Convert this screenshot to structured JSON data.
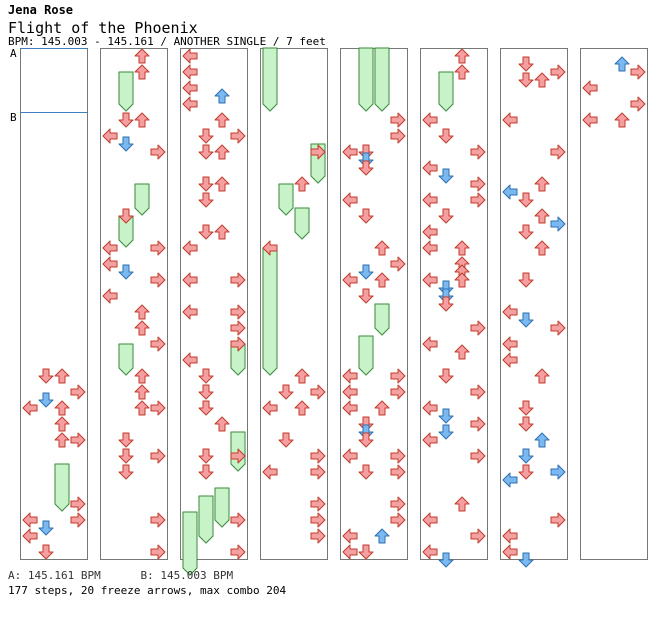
{
  "header": {
    "artist": "Jena Rose",
    "title": "Flight of the Phoenix",
    "info": "BPM: 145.003 - 145.161 / ANOTHER SINGLE / 7 feet"
  },
  "footer": {
    "bpm_legend": "A: 145.161 BPM      B: 145.003 BPM",
    "stats": "177 steps, 20 freeze arrows, max combo 204"
  },
  "bpm_markers": [
    {
      "label": "A",
      "column": 0,
      "beat": 0
    },
    {
      "label": "B",
      "column": 0,
      "beat": 4
    }
  ],
  "colors": {
    "normal_note": "#f5a0a0",
    "offbeat_note": "#7ab8ef",
    "freeze": "#c8f2c8"
  },
  "chart_data": {
    "type": "step-chart",
    "columns": 8,
    "measures_per_column": 8,
    "beats_per_measure": 4,
    "lanes": [
      "left",
      "down",
      "up",
      "right"
    ],
    "notes": [
      {
        "c": 0,
        "b": 20.0,
        "l": 1,
        "k": "n"
      },
      {
        "c": 0,
        "b": 20.0,
        "l": 2,
        "k": "n"
      },
      {
        "c": 0,
        "b": 21.0,
        "l": 3,
        "k": "n"
      },
      {
        "c": 0,
        "b": 21.5,
        "l": 1,
        "k": "o"
      },
      {
        "c": 0,
        "b": 22.0,
        "l": 0,
        "k": "n"
      },
      {
        "c": 0,
        "b": 22.0,
        "l": 2,
        "k": "n"
      },
      {
        "c": 0,
        "b": 23.0,
        "l": 2,
        "k": "n"
      },
      {
        "c": 0,
        "b": 24.0,
        "l": 2,
        "k": "n"
      },
      {
        "c": 0,
        "b": 24.0,
        "l": 3,
        "k": "n"
      },
      {
        "c": 0,
        "b": 28.0,
        "l": 3,
        "k": "n"
      },
      {
        "c": 0,
        "b": 29.0,
        "l": 0,
        "k": "n"
      },
      {
        "c": 0,
        "b": 29.0,
        "l": 3,
        "k": "n"
      },
      {
        "c": 0,
        "b": 29.5,
        "l": 1,
        "k": "o"
      },
      {
        "c": 0,
        "b": 30.0,
        "l": 0,
        "k": "n"
      },
      {
        "c": 0,
        "b": 31.0,
        "l": 1,
        "k": "n"
      },
      {
        "c": 1,
        "b": 0.0,
        "l": 2,
        "k": "n"
      },
      {
        "c": 1,
        "b": 1.0,
        "l": 2,
        "k": "n"
      },
      {
        "c": 1,
        "b": 4.0,
        "l": 1,
        "k": "n"
      },
      {
        "c": 1,
        "b": 4.0,
        "l": 2,
        "k": "n"
      },
      {
        "c": 1,
        "b": 5.0,
        "l": 0,
        "k": "n"
      },
      {
        "c": 1,
        "b": 5.5,
        "l": 1,
        "k": "o"
      },
      {
        "c": 1,
        "b": 6.0,
        "l": 3,
        "k": "n"
      },
      {
        "c": 1,
        "b": 10.0,
        "l": 1,
        "k": "n"
      },
      {
        "c": 1,
        "b": 12.0,
        "l": 3,
        "k": "n"
      },
      {
        "c": 1,
        "b": 12.0,
        "l": 0,
        "k": "n"
      },
      {
        "c": 1,
        "b": 13.0,
        "l": 0,
        "k": "n"
      },
      {
        "c": 1,
        "b": 13.5,
        "l": 1,
        "k": "o"
      },
      {
        "c": 1,
        "b": 14.0,
        "l": 3,
        "k": "n"
      },
      {
        "c": 1,
        "b": 15.0,
        "l": 0,
        "k": "n"
      },
      {
        "c": 1,
        "b": 16.0,
        "l": 2,
        "k": "n"
      },
      {
        "c": 1,
        "b": 17.0,
        "l": 2,
        "k": "n"
      },
      {
        "c": 1,
        "b": 18.0,
        "l": 3,
        "k": "n"
      },
      {
        "c": 1,
        "b": 20.0,
        "l": 2,
        "k": "n"
      },
      {
        "c": 1,
        "b": 21.0,
        "l": 2,
        "k": "n"
      },
      {
        "c": 1,
        "b": 22.0,
        "l": 2,
        "k": "n"
      },
      {
        "c": 1,
        "b": 22.0,
        "l": 3,
        "k": "n"
      },
      {
        "c": 1,
        "b": 24.0,
        "l": 1,
        "k": "n"
      },
      {
        "c": 1,
        "b": 25.0,
        "l": 1,
        "k": "n"
      },
      {
        "c": 1,
        "b": 25.0,
        "l": 3,
        "k": "n"
      },
      {
        "c": 1,
        "b": 26.0,
        "l": 1,
        "k": "n"
      },
      {
        "c": 1,
        "b": 29.0,
        "l": 3,
        "k": "n"
      },
      {
        "c": 1,
        "b": 31.0,
        "l": 3,
        "k": "n"
      },
      {
        "c": 2,
        "b": 0.0,
        "l": 0,
        "k": "n"
      },
      {
        "c": 2,
        "b": 1.0,
        "l": 0,
        "k": "n"
      },
      {
        "c": 2,
        "b": 2.0,
        "l": 0,
        "k": "n"
      },
      {
        "c": 2,
        "b": 2.5,
        "l": 2,
        "k": "o"
      },
      {
        "c": 2,
        "b": 3.0,
        "l": 0,
        "k": "n"
      },
      {
        "c": 2,
        "b": 4.0,
        "l": 2,
        "k": "n"
      },
      {
        "c": 2,
        "b": 5.0,
        "l": 1,
        "k": "n"
      },
      {
        "c": 2,
        "b": 5.0,
        "l": 3,
        "k": "n"
      },
      {
        "c": 2,
        "b": 6.0,
        "l": 1,
        "k": "n"
      },
      {
        "c": 2,
        "b": 6.0,
        "l": 2,
        "k": "n"
      },
      {
        "c": 2,
        "b": 8.0,
        "l": 1,
        "k": "n"
      },
      {
        "c": 2,
        "b": 8.0,
        "l": 2,
        "k": "n"
      },
      {
        "c": 2,
        "b": 9.0,
        "l": 1,
        "k": "n"
      },
      {
        "c": 2,
        "b": 11.0,
        "l": 1,
        "k": "n"
      },
      {
        "c": 2,
        "b": 11.0,
        "l": 2,
        "k": "n"
      },
      {
        "c": 2,
        "b": 12.0,
        "l": 0,
        "k": "n"
      },
      {
        "c": 2,
        "b": 14.0,
        "l": 0,
        "k": "n"
      },
      {
        "c": 2,
        "b": 14.0,
        "l": 3,
        "k": "n"
      },
      {
        "c": 2,
        "b": 16.0,
        "l": 0,
        "k": "n"
      },
      {
        "c": 2,
        "b": 16.0,
        "l": 3,
        "k": "n"
      },
      {
        "c": 2,
        "b": 17.0,
        "l": 3,
        "k": "n"
      },
      {
        "c": 2,
        "b": 18.0,
        "l": 3,
        "k": "n"
      },
      {
        "c": 2,
        "b": 19.0,
        "l": 0,
        "k": "n"
      },
      {
        "c": 2,
        "b": 20.0,
        "l": 1,
        "k": "n"
      },
      {
        "c": 2,
        "b": 21.0,
        "l": 1,
        "k": "n"
      },
      {
        "c": 2,
        "b": 22.0,
        "l": 1,
        "k": "n"
      },
      {
        "c": 2,
        "b": 23.0,
        "l": 2,
        "k": "n"
      },
      {
        "c": 2,
        "b": 25.0,
        "l": 1,
        "k": "n"
      },
      {
        "c": 2,
        "b": 25.0,
        "l": 3,
        "k": "n"
      },
      {
        "c": 2,
        "b": 26.0,
        "l": 1,
        "k": "n"
      },
      {
        "c": 2,
        "b": 29.0,
        "l": 3,
        "k": "n"
      },
      {
        "c": 2,
        "b": 31.0,
        "l": 3,
        "k": "n"
      },
      {
        "c": 3,
        "b": 6.0,
        "l": 3,
        "k": "n"
      },
      {
        "c": 3,
        "b": 8.0,
        "l": 2,
        "k": "n"
      },
      {
        "c": 3,
        "b": 12.0,
        "l": 0,
        "k": "n"
      },
      {
        "c": 3,
        "b": 20.0,
        "l": 2,
        "k": "n"
      },
      {
        "c": 3,
        "b": 21.0,
        "l": 1,
        "k": "n"
      },
      {
        "c": 3,
        "b": 21.0,
        "l": 3,
        "k": "n"
      },
      {
        "c": 3,
        "b": 22.0,
        "l": 0,
        "k": "n"
      },
      {
        "c": 3,
        "b": 22.0,
        "l": 2,
        "k": "n"
      },
      {
        "c": 3,
        "b": 24.0,
        "l": 1,
        "k": "n"
      },
      {
        "c": 3,
        "b": 25.0,
        "l": 3,
        "k": "n"
      },
      {
        "c": 3,
        "b": 26.0,
        "l": 0,
        "k": "n"
      },
      {
        "c": 3,
        "b": 26.0,
        "l": 3,
        "k": "n"
      },
      {
        "c": 3,
        "b": 28.0,
        "l": 3,
        "k": "n"
      },
      {
        "c": 3,
        "b": 29.0,
        "l": 3,
        "k": "n"
      },
      {
        "c": 3,
        "b": 30.0,
        "l": 3,
        "k": "n"
      },
      {
        "c": 4,
        "b": 4.0,
        "l": 3,
        "k": "n"
      },
      {
        "c": 4,
        "b": 5.0,
        "l": 3,
        "k": "n"
      },
      {
        "c": 4,
        "b": 6.0,
        "l": 0,
        "k": "n"
      },
      {
        "c": 4,
        "b": 6.0,
        "l": 1,
        "k": "n"
      },
      {
        "c": 4,
        "b": 6.5,
        "l": 1,
        "k": "o"
      },
      {
        "c": 4,
        "b": 7.0,
        "l": 1,
        "k": "n"
      },
      {
        "c": 4,
        "b": 9.0,
        "l": 0,
        "k": "n"
      },
      {
        "c": 4,
        "b": 10.0,
        "l": 1,
        "k": "n"
      },
      {
        "c": 4,
        "b": 12.0,
        "l": 2,
        "k": "n"
      },
      {
        "c": 4,
        "b": 13.0,
        "l": 3,
        "k": "n"
      },
      {
        "c": 4,
        "b": 13.5,
        "l": 1,
        "k": "o"
      },
      {
        "c": 4,
        "b": 14.0,
        "l": 0,
        "k": "n"
      },
      {
        "c": 4,
        "b": 14.0,
        "l": 2,
        "k": "n"
      },
      {
        "c": 4,
        "b": 15.0,
        "l": 1,
        "k": "n"
      },
      {
        "c": 4,
        "b": 20.0,
        "l": 0,
        "k": "n"
      },
      {
        "c": 4,
        "b": 20.0,
        "l": 3,
        "k": "n"
      },
      {
        "c": 4,
        "b": 21.0,
        "l": 0,
        "k": "n"
      },
      {
        "c": 4,
        "b": 21.0,
        "l": 3,
        "k": "n"
      },
      {
        "c": 4,
        "b": 22.0,
        "l": 0,
        "k": "n"
      },
      {
        "c": 4,
        "b": 22.0,
        "l": 2,
        "k": "n"
      },
      {
        "c": 4,
        "b": 23.0,
        "l": 1,
        "k": "n"
      },
      {
        "c": 4,
        "b": 23.5,
        "l": 1,
        "k": "o"
      },
      {
        "c": 4,
        "b": 24.0,
        "l": 1,
        "k": "n"
      },
      {
        "c": 4,
        "b": 25.0,
        "l": 0,
        "k": "n"
      },
      {
        "c": 4,
        "b": 25.0,
        "l": 3,
        "k": "n"
      },
      {
        "c": 4,
        "b": 26.0,
        "l": 1,
        "k": "n"
      },
      {
        "c": 4,
        "b": 26.0,
        "l": 3,
        "k": "n"
      },
      {
        "c": 4,
        "b": 28.0,
        "l": 3,
        "k": "n"
      },
      {
        "c": 4,
        "b": 29.0,
        "l": 3,
        "k": "n"
      },
      {
        "c": 4,
        "b": 30.0,
        "l": 0,
        "k": "n"
      },
      {
        "c": 4,
        "b": 30.0,
        "l": 2,
        "k": "o"
      },
      {
        "c": 4,
        "b": 31.0,
        "l": 0,
        "k": "n"
      },
      {
        "c": 4,
        "b": 31.0,
        "l": 1,
        "k": "n"
      },
      {
        "c": 5,
        "b": 0.0,
        "l": 2,
        "k": "n"
      },
      {
        "c": 5,
        "b": 1.0,
        "l": 2,
        "k": "n"
      },
      {
        "c": 5,
        "b": 4.0,
        "l": 0,
        "k": "n"
      },
      {
        "c": 5,
        "b": 5.0,
        "l": 1,
        "k": "n"
      },
      {
        "c": 5,
        "b": 6.0,
        "l": 3,
        "k": "n"
      },
      {
        "c": 5,
        "b": 7.0,
        "l": 0,
        "k": "n"
      },
      {
        "c": 5,
        "b": 7.5,
        "l": 1,
        "k": "o"
      },
      {
        "c": 5,
        "b": 8.0,
        "l": 3,
        "k": "n"
      },
      {
        "c": 5,
        "b": 9.0,
        "l": 0,
        "k": "n"
      },
      {
        "c": 5,
        "b": 9.0,
        "l": 3,
        "k": "n"
      },
      {
        "c": 5,
        "b": 10.0,
        "l": 1,
        "k": "n"
      },
      {
        "c": 5,
        "b": 11.0,
        "l": 0,
        "k": "n"
      },
      {
        "c": 5,
        "b": 12.0,
        "l": 0,
        "k": "n"
      },
      {
        "c": 5,
        "b": 12.0,
        "l": 2,
        "k": "n"
      },
      {
        "c": 5,
        "b": 13.0,
        "l": 2,
        "k": "n"
      },
      {
        "c": 5,
        "b": 13.5,
        "l": 2,
        "k": "n"
      },
      {
        "c": 5,
        "b": 14.0,
        "l": 0,
        "k": "n"
      },
      {
        "c": 5,
        "b": 14.0,
        "l": 2,
        "k": "n"
      },
      {
        "c": 5,
        "b": 14.5,
        "l": 1,
        "k": "o"
      },
      {
        "c": 5,
        "b": 15.0,
        "l": 1,
        "k": "o"
      },
      {
        "c": 5,
        "b": 15.5,
        "l": 1,
        "k": "n"
      },
      {
        "c": 5,
        "b": 17.0,
        "l": 3,
        "k": "n"
      },
      {
        "c": 5,
        "b": 18.0,
        "l": 0,
        "k": "n"
      },
      {
        "c": 5,
        "b": 18.5,
        "l": 2,
        "k": "n"
      },
      {
        "c": 5,
        "b": 20.0,
        "l": 1,
        "k": "n"
      },
      {
        "c": 5,
        "b": 21.0,
        "l": 3,
        "k": "n"
      },
      {
        "c": 5,
        "b": 22.0,
        "l": 0,
        "k": "n"
      },
      {
        "c": 5,
        "b": 22.5,
        "l": 1,
        "k": "o"
      },
      {
        "c": 5,
        "b": 23.0,
        "l": 3,
        "k": "n"
      },
      {
        "c": 5,
        "b": 23.5,
        "l": 1,
        "k": "o"
      },
      {
        "c": 5,
        "b": 24.0,
        "l": 0,
        "k": "n"
      },
      {
        "c": 5,
        "b": 25.0,
        "l": 3,
        "k": "n"
      },
      {
        "c": 5,
        "b": 28.0,
        "l": 2,
        "k": "n"
      },
      {
        "c": 5,
        "b": 29.0,
        "l": 0,
        "k": "n"
      },
      {
        "c": 5,
        "b": 30.0,
        "l": 3,
        "k": "n"
      },
      {
        "c": 5,
        "b": 31.0,
        "l": 0,
        "k": "n"
      },
      {
        "c": 5,
        "b": 31.5,
        "l": 1,
        "k": "o"
      },
      {
        "c": 6,
        "b": 0.5,
        "l": 1,
        "k": "n"
      },
      {
        "c": 6,
        "b": 1.0,
        "l": 3,
        "k": "n"
      },
      {
        "c": 6,
        "b": 1.5,
        "l": 1,
        "k": "n"
      },
      {
        "c": 6,
        "b": 1.5,
        "l": 2,
        "k": "n"
      },
      {
        "c": 6,
        "b": 4.0,
        "l": 0,
        "k": "n"
      },
      {
        "c": 6,
        "b": 6.0,
        "l": 3,
        "k": "n"
      },
      {
        "c": 6,
        "b": 8.0,
        "l": 2,
        "k": "n"
      },
      {
        "c": 6,
        "b": 8.5,
        "l": 0,
        "k": "o"
      },
      {
        "c": 6,
        "b": 9.0,
        "l": 1,
        "k": "n"
      },
      {
        "c": 6,
        "b": 10.0,
        "l": 2,
        "k": "n"
      },
      {
        "c": 6,
        "b": 10.5,
        "l": 3,
        "k": "o"
      },
      {
        "c": 6,
        "b": 11.0,
        "l": 1,
        "k": "n"
      },
      {
        "c": 6,
        "b": 12.0,
        "l": 2,
        "k": "n"
      },
      {
        "c": 6,
        "b": 14.0,
        "l": 1,
        "k": "n"
      },
      {
        "c": 6,
        "b": 16.0,
        "l": 0,
        "k": "n"
      },
      {
        "c": 6,
        "b": 16.5,
        "l": 1,
        "k": "o"
      },
      {
        "c": 6,
        "b": 17.0,
        "l": 3,
        "k": "n"
      },
      {
        "c": 6,
        "b": 18.0,
        "l": 0,
        "k": "n"
      },
      {
        "c": 6,
        "b": 19.0,
        "l": 0,
        "k": "n"
      },
      {
        "c": 6,
        "b": 20.0,
        "l": 2,
        "k": "n"
      },
      {
        "c": 6,
        "b": 22.0,
        "l": 1,
        "k": "n"
      },
      {
        "c": 6,
        "b": 23.0,
        "l": 1,
        "k": "n"
      },
      {
        "c": 6,
        "b": 24.0,
        "l": 2,
        "k": "o"
      },
      {
        "c": 6,
        "b": 25.0,
        "l": 1,
        "k": "o"
      },
      {
        "c": 6,
        "b": 26.0,
        "l": 3,
        "k": "o"
      },
      {
        "c": 6,
        "b": 26.5,
        "l": 0,
        "k": "o"
      },
      {
        "c": 6,
        "b": 26.0,
        "l": 1,
        "k": "n"
      },
      {
        "c": 6,
        "b": 29.0,
        "l": 3,
        "k": "n"
      },
      {
        "c": 6,
        "b": 30.0,
        "l": 0,
        "k": "n"
      },
      {
        "c": 6,
        "b": 31.0,
        "l": 0,
        "k": "n"
      },
      {
        "c": 6,
        "b": 31.5,
        "l": 1,
        "k": "o"
      },
      {
        "c": 7,
        "b": 0.5,
        "l": 2,
        "k": "o"
      },
      {
        "c": 7,
        "b": 1.0,
        "l": 3,
        "k": "n"
      },
      {
        "c": 7,
        "b": 2.0,
        "l": 0,
        "k": "n"
      },
      {
        "c": 7,
        "b": 3.0,
        "l": 3,
        "k": "n"
      },
      {
        "c": 7,
        "b": 4.0,
        "l": 0,
        "k": "n"
      },
      {
        "c": 7,
        "b": 4.0,
        "l": 2,
        "k": "n"
      }
    ],
    "freezes": [
      {
        "c": 0,
        "b": 26.0,
        "e": 28.0,
        "l": 2
      },
      {
        "c": 1,
        "b": 1.5,
        "e": 3.0,
        "l": 1
      },
      {
        "c": 1,
        "b": 8.5,
        "e": 9.5,
        "l": 2
      },
      {
        "c": 1,
        "b": 10.5,
        "e": 11.5,
        "l": 1
      },
      {
        "c": 1,
        "b": 18.5,
        "e": 19.5,
        "l": 1
      },
      {
        "c": 2,
        "b": 18.5,
        "e": 19.5,
        "l": 3
      },
      {
        "c": 2,
        "b": 24.0,
        "e": 25.5,
        "l": 3
      },
      {
        "c": 2,
        "b": 27.5,
        "e": 29.0,
        "l": 2
      },
      {
        "c": 2,
        "b": 28.0,
        "e": 30.0,
        "l": 1
      },
      {
        "c": 2,
        "b": 29.0,
        "e": 32.0,
        "l": 0
      },
      {
        "c": 3,
        "b": 0.0,
        "e": 3.0,
        "l": 0
      },
      {
        "c": 3,
        "b": 8.5,
        "e": 9.5,
        "l": 1
      },
      {
        "c": 3,
        "b": 10.0,
        "e": 11.0,
        "l": 2
      },
      {
        "c": 3,
        "b": 12.5,
        "e": 19.5,
        "l": 0
      },
      {
        "c": 4,
        "b": 0.0,
        "e": 3.0,
        "l": 1
      },
      {
        "c": 4,
        "b": 0.0,
        "e": 3.0,
        "l": 2
      },
      {
        "c": 4,
        "b": 16.0,
        "e": 17.0,
        "l": 2
      },
      {
        "c": 4,
        "b": 18.0,
        "e": 19.5,
        "l": 1
      },
      {
        "c": 5,
        "b": 1.5,
        "e": 3.0,
        "l": 1
      },
      {
        "c": 3,
        "b": 6.0,
        "e": 7.5,
        "l": 3
      }
    ]
  }
}
